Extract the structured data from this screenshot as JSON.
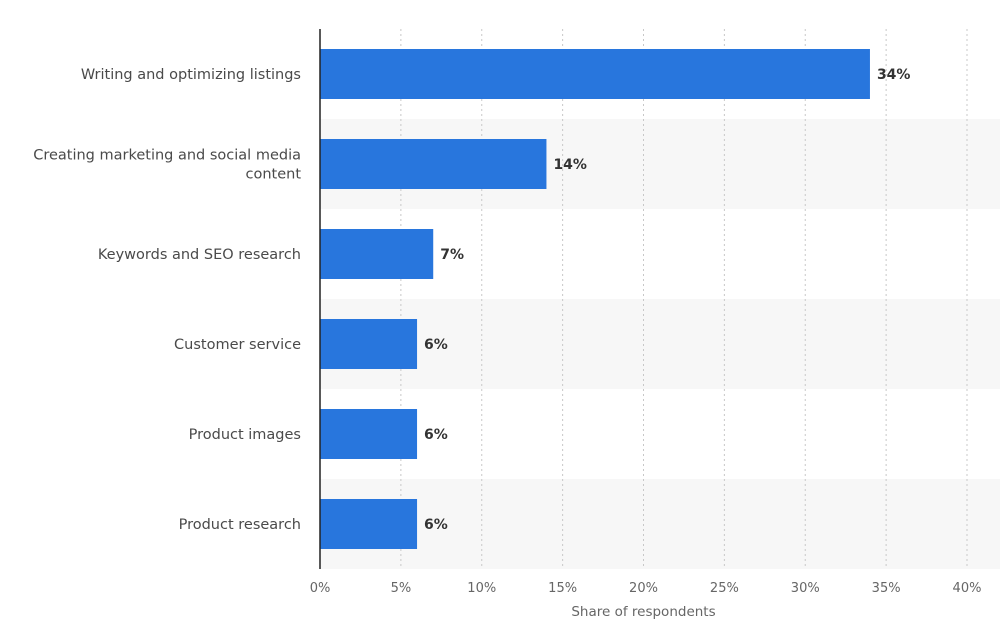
{
  "colors": {
    "bar": "#2876dd",
    "band": "#f7f7f7",
    "grid": "#c8c8c8",
    "axis": "#222222"
  },
  "chart_data": {
    "type": "bar",
    "orientation": "horizontal",
    "categories": [
      [
        "Writing and optimizing listings"
      ],
      [
        "Creating marketing and social media",
        "content"
      ],
      [
        "Keywords and SEO research"
      ],
      [
        "Customer service"
      ],
      [
        "Product images"
      ],
      [
        "Product research"
      ]
    ],
    "values": [
      34,
      14,
      7,
      6,
      6,
      6
    ],
    "value_labels": [
      "34%",
      "14%",
      "7%",
      "6%",
      "6%",
      "6%"
    ],
    "xlabel": "Share of respondents",
    "ylabel": "",
    "xlim": [
      0,
      40
    ],
    "ticks": [
      0,
      5,
      10,
      15,
      20,
      25,
      30,
      35,
      40
    ],
    "tick_labels": [
      "0%",
      "5%",
      "10%",
      "15%",
      "20%",
      "25%",
      "30%",
      "35%",
      "40%"
    ],
    "grid": true,
    "legend": "none"
  }
}
